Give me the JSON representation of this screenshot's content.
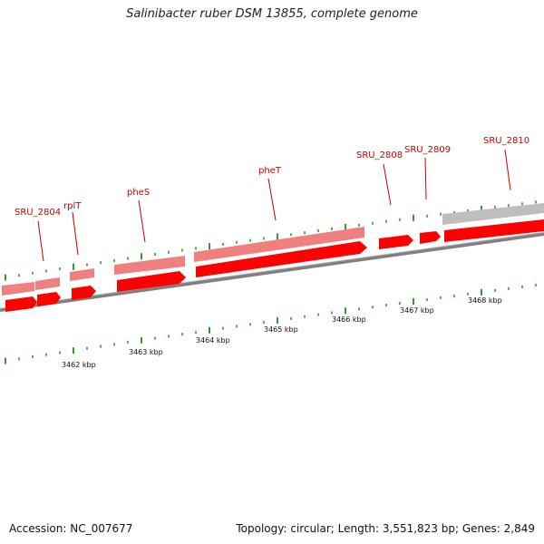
{
  "title": "Salinibacter ruber DSM 13855, complete genome",
  "footer": {
    "accession_label": "Accession: NC_007677",
    "summary": "Topology: circular; Length: 3,551,823 bp; Genes: 2,849"
  },
  "colors": {
    "cds": "#ff0000",
    "gene": "#f08080",
    "pseudo": "#bebebe",
    "backbone": "#808080",
    "label": "#cc0000",
    "tick": "#008000"
  },
  "gene_labels": [
    "SRU_2804",
    "rplT",
    "pheS",
    "pheT",
    "SRU_2808",
    "SRU_2809",
    "SRU_2810"
  ],
  "scale_labels": [
    "3462 kbp",
    "3463 kbp",
    "3464 kbp",
    "3465 kbp",
    "3466 kbp",
    "3467 kbp",
    "3468 kbp"
  ]
}
